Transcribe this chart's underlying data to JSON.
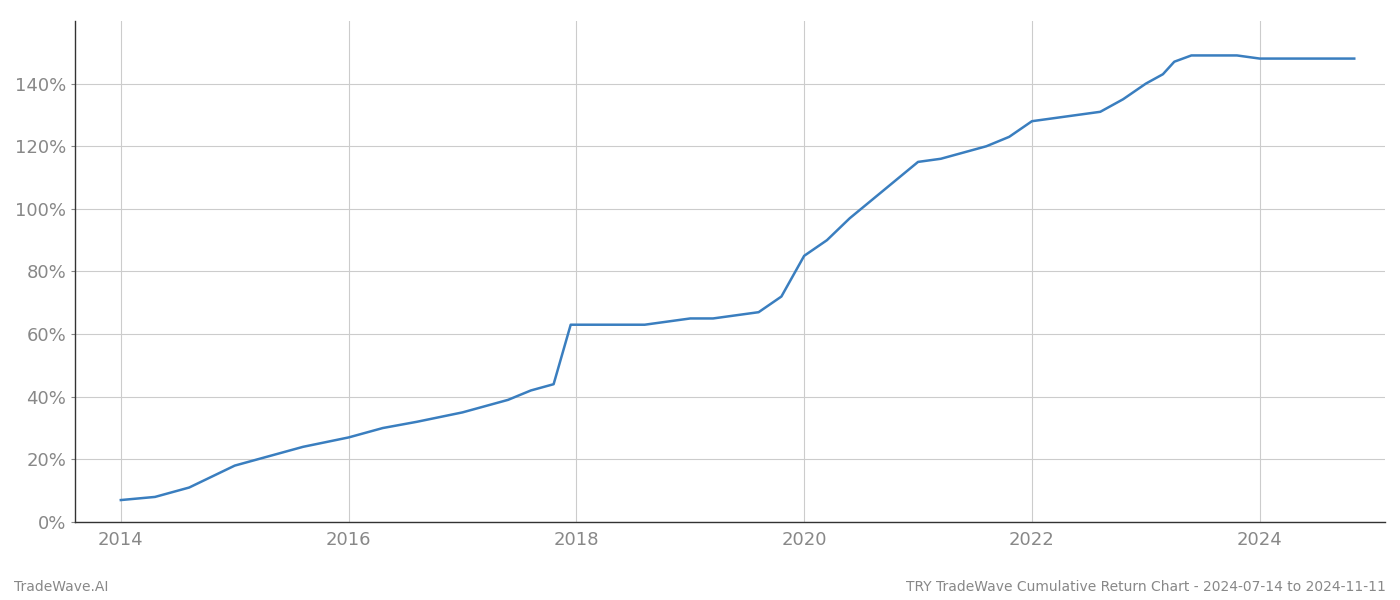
{
  "title": "TRY TradeWave Cumulative Return Chart - 2024-07-14 to 2024-11-11",
  "watermark": "TradeWave.AI",
  "line_color": "#3a7ebf",
  "background_color": "#ffffff",
  "grid_color": "#cccccc",
  "data_points": [
    [
      2014.0,
      7
    ],
    [
      2014.3,
      8
    ],
    [
      2014.6,
      11
    ],
    [
      2015.0,
      18
    ],
    [
      2015.3,
      21
    ],
    [
      2015.6,
      24
    ],
    [
      2016.0,
      27
    ],
    [
      2016.3,
      30
    ],
    [
      2016.6,
      32
    ],
    [
      2017.0,
      35
    ],
    [
      2017.2,
      37
    ],
    [
      2017.4,
      39
    ],
    [
      2017.6,
      42
    ],
    [
      2017.8,
      44
    ],
    [
      2017.95,
      63
    ],
    [
      2018.0,
      63
    ],
    [
      2018.3,
      63
    ],
    [
      2018.6,
      63
    ],
    [
      2018.8,
      64
    ],
    [
      2019.0,
      65
    ],
    [
      2019.2,
      65
    ],
    [
      2019.4,
      66
    ],
    [
      2019.6,
      67
    ],
    [
      2019.8,
      72
    ],
    [
      2020.0,
      85
    ],
    [
      2020.2,
      90
    ],
    [
      2020.4,
      97
    ],
    [
      2020.6,
      103
    ],
    [
      2020.8,
      109
    ],
    [
      2021.0,
      115
    ],
    [
      2021.2,
      116
    ],
    [
      2021.4,
      118
    ],
    [
      2021.6,
      120
    ],
    [
      2021.8,
      123
    ],
    [
      2022.0,
      128
    ],
    [
      2022.2,
      129
    ],
    [
      2022.4,
      130
    ],
    [
      2022.6,
      131
    ],
    [
      2022.8,
      135
    ],
    [
      2023.0,
      140
    ],
    [
      2023.15,
      143
    ],
    [
      2023.25,
      147
    ],
    [
      2023.4,
      149
    ],
    [
      2023.6,
      149
    ],
    [
      2023.8,
      149
    ],
    [
      2024.0,
      148
    ],
    [
      2024.3,
      148
    ],
    [
      2024.6,
      148
    ],
    [
      2024.83,
      148
    ]
  ],
  "ylim": [
    0,
    160
  ],
  "xlim": [
    2013.6,
    2025.1
  ],
  "yticks": [
    0,
    20,
    40,
    60,
    80,
    100,
    120,
    140
  ],
  "xticks": [
    2014,
    2016,
    2018,
    2020,
    2022,
    2024
  ],
  "line_width": 1.8,
  "title_fontsize": 10,
  "watermark_fontsize": 10,
  "tick_fontsize": 13,
  "axis_color": "#888888",
  "spine_color": "#333333"
}
